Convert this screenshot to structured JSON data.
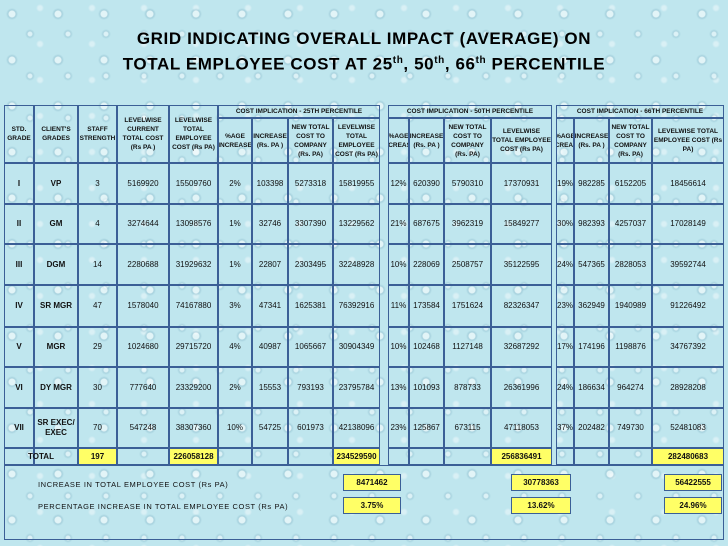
{
  "title": {
    "line1": "GRID INDICATING OVERALL IMPACT (AVERAGE) ON",
    "line2_prefix": "TOTAL EMPLOYEE COST AT 25",
    "sup1": "th",
    "sep1": ", 50",
    "sup2": "th",
    "sep2": ", 66",
    "sup3": "th",
    "line2_suffix": " PERCENTILE"
  },
  "headers": {
    "grade": "STD. GRADE",
    "clients": "CLIENT'S GRADES",
    "staff": "STAFF STRENGTH",
    "current": "LEVELWISE CURRENT TOTAL COST (Rs PA )",
    "emp": "LEVELWISE TOTAL EMPLOYEE COST (Rs PA)",
    "pct": "%AGE INCREASE",
    "inc": "INCREASE (Rs. PA )",
    "newtotal": "NEW TOTAL COST TO COMPANY (Rs. PA)",
    "lvl": "LEVELWISE TOTAL EMPLOYEE COST (Rs PA)"
  },
  "groups": [
    "COST IMPLICATION - 25TH PERCENTILE",
    "COST IMPLICATION - 50TH PERCENTILE",
    "COST IMPLICATION - 66TH PERCENTILE"
  ],
  "rows": [
    [
      "I",
      "VP",
      "3",
      "5169920",
      "15509760",
      "2%",
      "103398",
      "5273318",
      "15819955",
      "12%",
      "620390",
      "5790310",
      "17370931",
      "19%",
      "982285",
      "6152205",
      "18456614"
    ],
    [
      "II",
      "GM",
      "4",
      "3274644",
      "13098576",
      "1%",
      "32746",
      "3307390",
      "13229562",
      "21%",
      "687675",
      "3962319",
      "15849277",
      "30%",
      "982393",
      "4257037",
      "17028149"
    ],
    [
      "III",
      "DGM",
      "14",
      "2280688",
      "31929632",
      "1%",
      "22807",
      "2303495",
      "32248928",
      "10%",
      "228069",
      "2508757",
      "35122595",
      "24%",
      "547365",
      "2828053",
      "39592744"
    ],
    [
      "IV",
      "SR MGR",
      "47",
      "1578040",
      "74167880",
      "3%",
      "47341",
      "1625381",
      "76392916",
      "11%",
      "173584",
      "1751624",
      "82326347",
      "23%",
      "362949",
      "1940989",
      "91226492"
    ],
    [
      "V",
      "MGR",
      "29",
      "1024680",
      "29715720",
      "4%",
      "40987",
      "1065667",
      "30904349",
      "10%",
      "102468",
      "1127148",
      "32687292",
      "17%",
      "174196",
      "1198876",
      "34767392"
    ],
    [
      "VI",
      "DY MGR",
      "30",
      "777640",
      "23329200",
      "2%",
      "15553",
      "793193",
      "23795784",
      "13%",
      "101093",
      "878733",
      "26361996",
      "24%",
      "186634",
      "964274",
      "28928208"
    ],
    [
      "VII",
      "SR EXEC/ EXEC",
      "70",
      "547248",
      "38307360",
      "10%",
      "54725",
      "601973",
      "42138096",
      "23%",
      "125867",
      "673115",
      "47118053",
      "37%",
      "202482",
      "749730",
      "52481083"
    ]
  ],
  "totals": {
    "label": "TOTAL",
    "staff": "197",
    "emp": "226058128",
    "p25": "234529590",
    "p50": "256836491",
    "p66": "282480683"
  },
  "summary": {
    "increase_label": "INCREASE IN TOTAL EMPLOYEE COST (Rs PA)",
    "pct_label": "PERCENTAGE INCREASE IN TOTAL EMPLOYEE COST (Rs PA)",
    "inc": [
      "8471462",
      "30778363",
      "56422555"
    ],
    "pct": [
      "3.75%",
      "13.62%",
      "24.96%"
    ]
  },
  "colors": {
    "highlight": "#ffff66",
    "border": "#3b5f96"
  }
}
